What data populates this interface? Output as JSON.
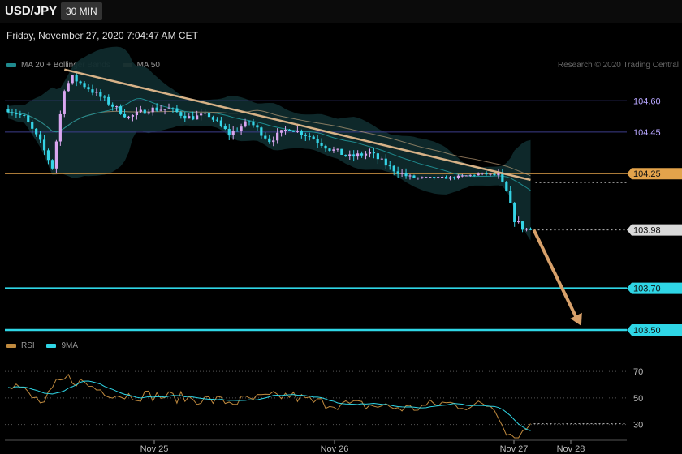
{
  "header": {
    "symbol": "USD/JPY",
    "timeframe": "30 MIN",
    "datetime": "Friday, November 27, 2020 7:04:47 AM CET",
    "credit": "Research © 2020 Trading Central"
  },
  "legend_price": [
    {
      "label": "MA 20 + Bollinger Bands",
      "color": "#1f8a8e"
    },
    {
      "label": "MA 50",
      "color": "#d7b287"
    }
  ],
  "legend_rsi": [
    {
      "label": "RSI",
      "color": "#c08a3e"
    },
    {
      "label": "9MA",
      "color": "#2fd6e6"
    }
  ],
  "colors": {
    "bull_candle": "#d9a6f0",
    "bear_candle": "#35d4e6",
    "level_line": "#2fd6e6",
    "resistance_line": "#e3a34b",
    "pivot_line": "#3d3d8a",
    "trendline": "#d7b287",
    "projection_arrow": "#d7a06a",
    "band_fill": "#0f2a2c",
    "ma20": "#1f8a8e",
    "ma50": "#d7b287",
    "rsi": "#c08a3e",
    "rsi_ma": "#2fd6e6"
  },
  "chart_data": {
    "type": "candlestick",
    "symbol": "USD/JPY",
    "interval": "30 MIN",
    "ylim": [
      103.43,
      104.78
    ],
    "x_labels": [
      "Nov 25",
      "Nov 26",
      "Nov 27",
      "Nov 28"
    ],
    "price_levels": [
      {
        "value": 104.6,
        "label": "104.60",
        "kind": "pivot"
      },
      {
        "value": 104.45,
        "label": "104.45",
        "kind": "pivot"
      },
      {
        "value": 104.25,
        "label": "104.25",
        "kind": "resistance"
      },
      {
        "value": 103.98,
        "label": "103.98",
        "kind": "last"
      },
      {
        "value": 103.7,
        "label": "103.70",
        "kind": "support"
      },
      {
        "value": 103.5,
        "label": "103.50",
        "kind": "support"
      }
    ],
    "trendline": {
      "from": {
        "bar": 14,
        "price": 104.75
      },
      "to": {
        "bar": 130,
        "price": 104.22
      }
    },
    "projection": {
      "from": {
        "bar": 130,
        "price": 103.98
      },
      "to": {
        "bar": 143,
        "price": 103.52
      }
    },
    "path": [
      [
        0,
        104.56
      ],
      [
        4,
        104.52
      ],
      [
        8,
        104.4
      ],
      [
        11,
        104.28
      ],
      [
        14,
        104.66
      ],
      [
        16,
        104.71
      ],
      [
        20,
        104.66
      ],
      [
        25,
        104.59
      ],
      [
        30,
        104.52
      ],
      [
        35,
        104.56
      ],
      [
        40,
        104.56
      ],
      [
        45,
        104.52
      ],
      [
        50,
        104.53
      ],
      [
        55,
        104.44
      ],
      [
        60,
        104.5
      ],
      [
        65,
        104.41
      ],
      [
        70,
        104.47
      ],
      [
        75,
        104.43
      ],
      [
        80,
        104.37
      ],
      [
        85,
        104.33
      ],
      [
        90,
        104.35
      ],
      [
        95,
        104.28
      ],
      [
        100,
        104.23
      ],
      [
        110,
        104.23
      ],
      [
        118,
        104.25
      ],
      [
        122,
        104.24
      ],
      [
        124,
        104.16
      ],
      [
        126,
        104.03
      ],
      [
        128,
        103.99
      ],
      [
        130,
        103.98
      ]
    ],
    "rsi": {
      "levels": [
        70,
        50,
        30
      ],
      "ylim": [
        20,
        78
      ],
      "path": [
        [
          0,
          62
        ],
        [
          3,
          58
        ],
        [
          6,
          50
        ],
        [
          9,
          46
        ],
        [
          12,
          60
        ],
        [
          15,
          65
        ],
        [
          18,
          62
        ],
        [
          22,
          57
        ],
        [
          28,
          52
        ],
        [
          34,
          52
        ],
        [
          40,
          51
        ],
        [
          48,
          49
        ],
        [
          56,
          47
        ],
        [
          64,
          50
        ],
        [
          70,
          52
        ],
        [
          76,
          47
        ],
        [
          84,
          45
        ],
        [
          92,
          44
        ],
        [
          100,
          42
        ],
        [
          108,
          46
        ],
        [
          116,
          44
        ],
        [
          120,
          45
        ],
        [
          122,
          38
        ],
        [
          124,
          26
        ],
        [
          126,
          20
        ],
        [
          128,
          24
        ],
        [
          130,
          31
        ]
      ]
    }
  }
}
